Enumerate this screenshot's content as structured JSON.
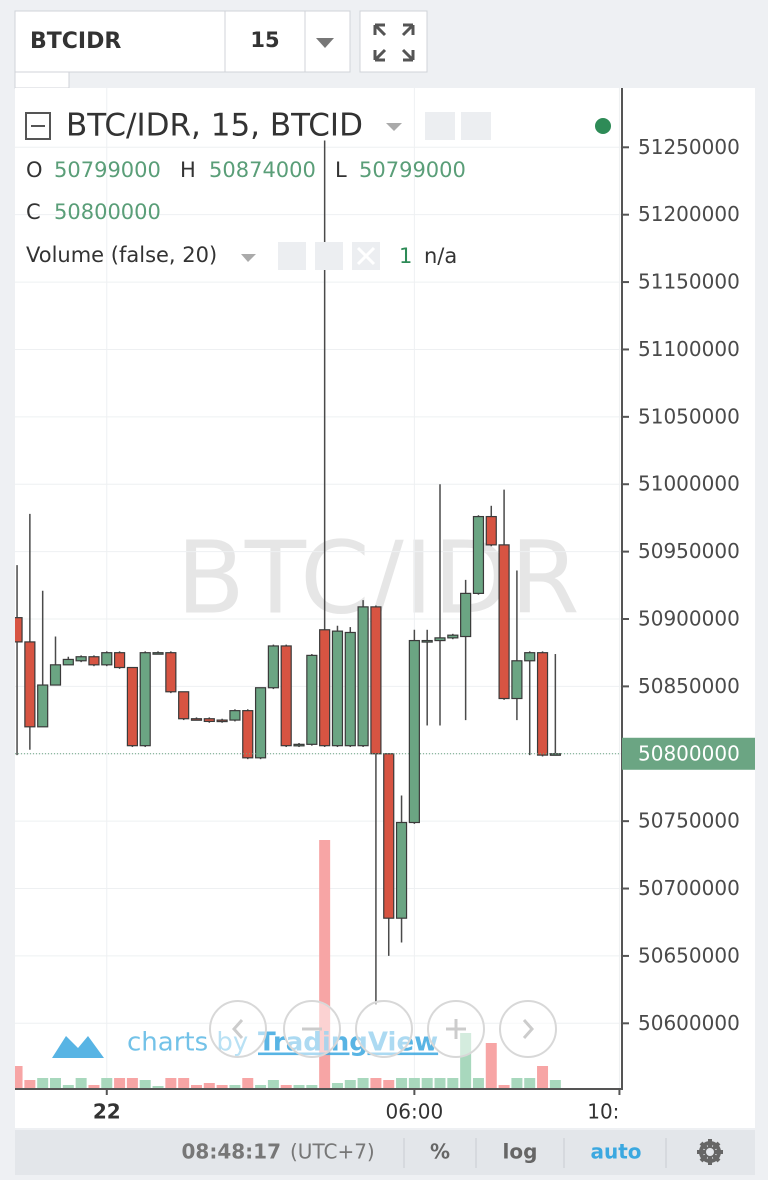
{
  "toolbar": {
    "symbol": "BTCIDR",
    "interval": "15"
  },
  "chart_data": {
    "type": "candlestick",
    "title": "BTC/IDR, 15, BTCID",
    "watermark": "BTC/IDR",
    "legend": {
      "open_label": "O",
      "high_label": "H",
      "low_label": "L",
      "close_label": "C",
      "volume_title": "Volume (false, 20)",
      "volume_count": "1",
      "volume_value": "n/a"
    },
    "x": [
      0,
      1,
      2,
      3,
      4,
      5,
      6,
      7,
      8,
      9,
      10,
      11,
      12,
      13,
      14,
      15,
      16,
      17,
      18,
      19,
      20,
      21,
      22,
      23,
      24,
      25,
      26,
      27,
      28,
      29,
      30,
      31,
      32,
      33,
      34,
      35,
      36,
      37,
      38,
      39,
      40,
      41,
      42
    ],
    "open": [
      50901000,
      50883000,
      50820000,
      50851000,
      50866000,
      50869000,
      50872000,
      50866000,
      50875000,
      50864000,
      50806000,
      50875000,
      50875000,
      50846000,
      50826000,
      50826000,
      50825000,
      50825000,
      50832000,
      50797000,
      50849000,
      50880000,
      50806000,
      50807000,
      50892000,
      50806000,
      50806000,
      50806000,
      50909000,
      50800000,
      50678000,
      50749000,
      50884000,
      50884000,
      50886000,
      50887000,
      50919000,
      50976000,
      50955000,
      50841000,
      50869000,
      50875000,
      50799000
    ],
    "high": [
      50940000,
      50978000,
      50921000,
      50887000,
      50872000,
      50873000,
      50873000,
      50876000,
      50876000,
      50864000,
      50876000,
      50876000,
      50876000,
      50846000,
      50827000,
      50827000,
      50826000,
      50833000,
      50833000,
      50849000,
      50881000,
      50881000,
      50808000,
      50874000,
      51255000,
      50895000,
      50894000,
      50914000,
      50910000,
      50800000,
      50769000,
      50892000,
      50892000,
      51000000,
      50889000,
      50929000,
      50977000,
      50984000,
      50996000,
      50936000,
      50876000,
      50876000,
      50874000
    ],
    "low": [
      50799000,
      50803000,
      50820000,
      50851000,
      50866000,
      50868000,
      50865000,
      50865000,
      50863000,
      50805000,
      50805000,
      50874000,
      50845000,
      50825000,
      50825000,
      50823000,
      50823000,
      50824000,
      50796000,
      50796000,
      50848000,
      50805000,
      50805000,
      50806000,
      50805000,
      50805000,
      50805000,
      50805000,
      50614000,
      50650000,
      50660000,
      50748000,
      50821000,
      50821000,
      50885000,
      50825000,
      50918000,
      50954000,
      50840000,
      50825000,
      50799000,
      50798000,
      50799000
    ],
    "close": [
      50883000,
      50820000,
      50851000,
      50866000,
      50870000,
      50872000,
      50866000,
      50875000,
      50864000,
      50806000,
      50875000,
      50875000,
      50846000,
      50826000,
      50825000,
      50824000,
      50824000,
      50832000,
      50797000,
      50849000,
      50880000,
      50806000,
      50807000,
      50873000,
      50806000,
      50891000,
      50890000,
      50909000,
      50800000,
      50678000,
      50749000,
      50884000,
      50884000,
      50886000,
      50888000,
      50919000,
      50976000,
      50955000,
      50841000,
      50869000,
      50875000,
      50799000,
      50800000
    ],
    "volume": [
      22,
      8,
      10,
      10,
      3,
      10,
      3,
      10,
      10,
      10,
      8,
      2,
      10,
      10,
      3,
      5,
      3,
      3,
      10,
      3,
      8,
      3,
      3,
      3,
      248,
      5,
      8,
      10,
      10,
      8,
      10,
      10,
      10,
      10,
      10,
      55,
      10,
      45,
      3,
      10,
      10,
      22,
      8
    ],
    "up_color": "#6ba583",
    "down_color": "#d75442",
    "wick_color": "#4a4a4a",
    "volume_up_color": "#a8d8bd",
    "volume_down_color": "#f7a5a5",
    "ylim": [
      50552000,
      51294000
    ],
    "yticks": [
      51250000,
      51200000,
      51150000,
      51100000,
      51050000,
      51000000,
      50950000,
      50900000,
      50850000,
      50800000,
      50750000,
      50700000,
      50650000,
      50600000
    ],
    "xlim": [
      -0.16,
      47.2
    ],
    "xticks": [
      {
        "value": 7,
        "label": "22"
      },
      {
        "value": 31,
        "label": "06:00"
      },
      {
        "value": 47,
        "label": "10:"
      }
    ],
    "grid": true
  },
  "branding": {
    "prefix": "charts by",
    "name": "TradingView"
  },
  "footer": {
    "time": "08:48:17",
    "timezone": "(UTC+7)",
    "percent": "%",
    "log": "log",
    "auto": "auto"
  }
}
